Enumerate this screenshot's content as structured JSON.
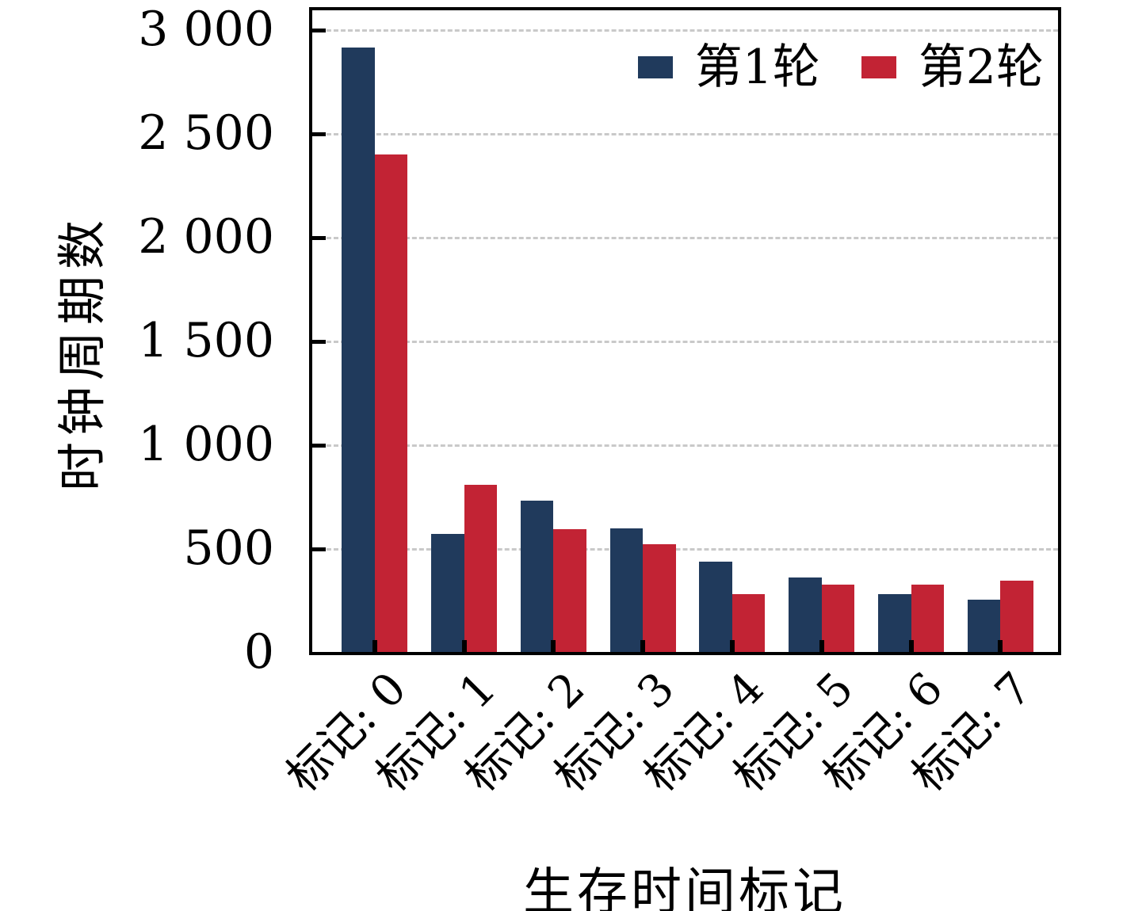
{
  "chart_data": {
    "type": "bar",
    "title": "",
    "xlabel": "生存时间标记",
    "ylabel": "时钟周期数",
    "categories": [
      "标记: 0",
      "标记: 1",
      "标记: 2",
      "标记: 3",
      "标记: 4",
      "标记: 5",
      "标记: 6",
      "标记: 7"
    ],
    "series": [
      {
        "name": "第1轮",
        "color": "#203a5c",
        "values": [
          2910,
          570,
          730,
          595,
          435,
          360,
          280,
          250
        ]
      },
      {
        "name": "第2轮",
        "color": "#c22334",
        "values": [
          2395,
          805,
          590,
          520,
          280,
          325,
          325,
          345
        ]
      }
    ],
    "ylim": [
      0,
      3090
    ],
    "yticks": [
      {
        "value": 0,
        "label": "0"
      },
      {
        "value": 500,
        "label": "500"
      },
      {
        "value": 1000,
        "label": "1 000"
      },
      {
        "value": 1500,
        "label": "1 500"
      },
      {
        "value": 2000,
        "label": "2 000"
      },
      {
        "value": 2500,
        "label": "2 500"
      },
      {
        "value": 3000,
        "label": "3 000"
      }
    ],
    "grid": "horizontal-dashed",
    "legend_position": "top-right-inside",
    "x_tick_rotation_deg": 45,
    "colors": {
      "axis": "#000000",
      "gridline": "#c9c9c9",
      "background": "#ffffff"
    }
  }
}
